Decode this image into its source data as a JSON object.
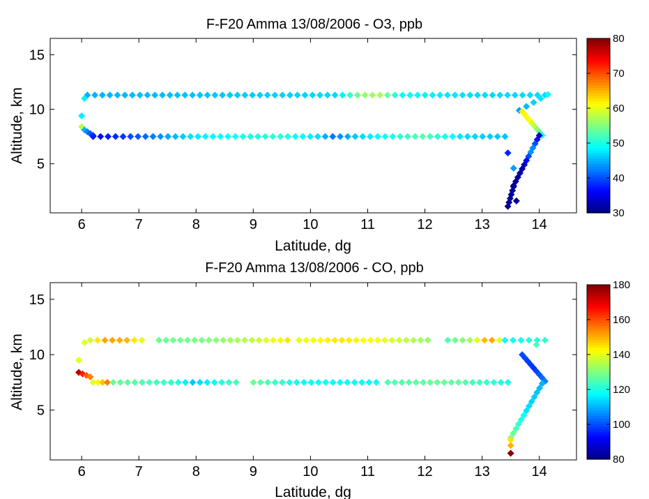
{
  "chart_data": [
    {
      "type": "scatter",
      "title": "F-F20 Amma 13/08/2006 - O3, ppb",
      "xlabel": "Latitude, dg",
      "ylabel": "Altitude, km",
      "xlim": [
        5.45,
        14.65
      ],
      "ylim": [
        0.5,
        16.5
      ],
      "xticks": [
        "6",
        "7",
        "8",
        "9",
        "10",
        "11",
        "12",
        "13",
        "14"
      ],
      "yticks": [
        "5",
        "10",
        "15"
      ],
      "colorbar": {
        "min": 30,
        "max": 80,
        "ticks": [
          "30",
          "40",
          "50",
          "60",
          "70",
          "80"
        ],
        "colormap": "jet"
      },
      "grid": false,
      "marker": "diamond",
      "segments": [
        {
          "from": [
            6.1,
            11.3
          ],
          "to": [
            14.1,
            11.3
          ],
          "n": 62,
          "colors": [
            [
              0,
              45
            ],
            [
              0.55,
              47
            ],
            [
              0.6,
              56
            ],
            [
              0.64,
              57
            ],
            [
              0.68,
              49
            ],
            [
              0.85,
              47
            ],
            [
              1,
              47
            ]
          ]
        },
        {
          "from": [
            6.2,
            7.5
          ],
          "to": [
            13.4,
            7.5
          ],
          "n": 56,
          "colors": [
            [
              0,
              36
            ],
            [
              0.1,
              40
            ],
            [
              0.25,
              48
            ],
            [
              0.45,
              51
            ],
            [
              0.55,
              47
            ],
            [
              0.58,
              42
            ],
            [
              0.65,
              47
            ],
            [
              0.8,
              53
            ],
            [
              0.9,
              47
            ],
            [
              1,
              46
            ]
          ]
        },
        {
          "from": [
            14.15,
            11.35
          ],
          "to": [
            13.65,
            9.9
          ],
          "n": 5,
          "colors": [
            [
              0,
              49
            ],
            [
              1,
              44
            ]
          ]
        },
        {
          "from": [
            13.7,
            9.8
          ],
          "to": [
            14.05,
            7.6
          ],
          "n": 9,
          "colors": [
            [
              0,
              62
            ],
            [
              0.4,
              61
            ],
            [
              0.8,
              55
            ],
            [
              1,
              50
            ]
          ]
        },
        {
          "from": [
            14.0,
            7.6
          ],
          "to": [
            13.55,
            3.0
          ],
          "n": 13,
          "colors": [
            [
              0,
              34
            ],
            [
              0.3,
              45
            ],
            [
              0.6,
              32
            ],
            [
              1,
              31
            ]
          ]
        },
        {
          "from": [
            13.55,
            2.9
          ],
          "to": [
            13.45,
            1.1
          ],
          "n": 6,
          "colors": [
            [
              0,
              31
            ],
            [
              1,
              31
            ]
          ]
        },
        {
          "from": [
            6.0,
            9.4
          ],
          "to": [
            6.0,
            9.4
          ],
          "n": 1,
          "colors": [
            [
              0,
              48
            ]
          ]
        },
        {
          "from": [
            6.0,
            8.4
          ],
          "to": [
            6.0,
            8.4
          ],
          "n": 1,
          "colors": [
            [
              0,
              58
            ]
          ]
        },
        {
          "from": [
            6.05,
            8.1
          ],
          "to": [
            6.2,
            7.6
          ],
          "n": 4,
          "colors": [
            [
              0,
              45
            ],
            [
              1,
              38
            ]
          ]
        },
        {
          "from": [
            6.05,
            11.0
          ],
          "to": [
            6.05,
            11.0
          ],
          "n": 1,
          "colors": [
            [
              0,
              48
            ]
          ]
        },
        {
          "from": [
            13.45,
            6.0
          ],
          "to": [
            13.55,
            4.6
          ],
          "n": 2,
          "colors": [
            [
              0,
              38
            ],
            [
              1,
              44
            ]
          ]
        },
        {
          "from": [
            13.6,
            1.6
          ],
          "to": [
            13.6,
            1.6
          ],
          "n": 1,
          "colors": [
            [
              0,
              31
            ]
          ]
        }
      ]
    },
    {
      "type": "scatter",
      "title": "F-F20 Amma 13/08/2006 - CO, ppb",
      "xlabel": "Latitude, dg",
      "ylabel": "Altitude, km",
      "xlim": [
        5.45,
        14.65
      ],
      "ylim": [
        0.5,
        16.5
      ],
      "xticks": [
        "6",
        "7",
        "8",
        "9",
        "10",
        "11",
        "12",
        "13",
        "14"
      ],
      "yticks": [
        "5",
        "10",
        "15"
      ],
      "colorbar": {
        "min": 80,
        "max": 180,
        "ticks": [
          "80",
          "100",
          "120",
          "140",
          "160",
          "180"
        ],
        "colormap": "jet"
      },
      "grid": false,
      "marker": "diamond",
      "segments": [
        {
          "from": [
            6.05,
            11.1
          ],
          "to": [
            6.1,
            11.2
          ],
          "n": 1,
          "colors": [
            [
              0,
              140
            ]
          ]
        },
        {
          "from": [
            6.15,
            11.3
          ],
          "to": [
            7.05,
            11.3
          ],
          "n": 8,
          "colors": [
            [
              0,
              138
            ],
            [
              0.3,
              152
            ],
            [
              0.7,
              150
            ],
            [
              1,
              140
            ]
          ]
        },
        {
          "from": [
            7.35,
            11.3
          ],
          "to": [
            9.6,
            11.3
          ],
          "n": 19,
          "colors": [
            [
              0,
              128
            ],
            [
              0.4,
              130
            ],
            [
              0.8,
              138
            ],
            [
              1,
              145
            ]
          ]
        },
        {
          "from": [
            9.8,
            11.3
          ],
          "to": [
            12.05,
            11.3
          ],
          "n": 19,
          "colors": [
            [
              0,
              140
            ],
            [
              0.3,
              145
            ],
            [
              0.6,
              142
            ],
            [
              1,
              132
            ]
          ]
        },
        {
          "from": [
            12.4,
            11.3
          ],
          "to": [
            13.3,
            11.3
          ],
          "n": 8,
          "colors": [
            [
              0,
              125
            ],
            [
              0.5,
              135
            ],
            [
              0.8,
              155
            ],
            [
              1,
              140
            ]
          ]
        },
        {
          "from": [
            13.4,
            11.3
          ],
          "to": [
            14.1,
            11.3
          ],
          "n": 6,
          "colors": [
            [
              0,
              118
            ],
            [
              1,
              122
            ]
          ]
        },
        {
          "from": [
            5.95,
            9.5
          ],
          "to": [
            5.95,
            9.5
          ],
          "n": 1,
          "colors": [
            [
              0,
              140
            ]
          ]
        },
        {
          "from": [
            5.95,
            8.4
          ],
          "to": [
            6.15,
            8.0
          ],
          "n": 4,
          "colors": [
            [
              0,
              175
            ],
            [
              0.5,
              160
            ],
            [
              1,
              155
            ]
          ]
        },
        {
          "from": [
            6.2,
            7.5
          ],
          "to": [
            6.45,
            7.5
          ],
          "n": 4,
          "colors": [
            [
              0,
              140
            ],
            [
              0.5,
              145
            ],
            [
              1,
              155
            ]
          ]
        },
        {
          "from": [
            6.55,
            7.5
          ],
          "to": [
            8.7,
            7.5
          ],
          "n": 18,
          "colors": [
            [
              0,
              128
            ],
            [
              0.5,
              122
            ],
            [
              0.65,
              112
            ],
            [
              1,
              125
            ]
          ]
        },
        {
          "from": [
            9.0,
            7.5
          ],
          "to": [
            11.15,
            7.5
          ],
          "n": 18,
          "colors": [
            [
              0,
              128
            ],
            [
              0.4,
              118
            ],
            [
              1,
              118
            ]
          ]
        },
        {
          "from": [
            11.35,
            7.5
          ],
          "to": [
            13.45,
            7.5
          ],
          "n": 18,
          "colors": [
            [
              0,
              125
            ],
            [
              0.5,
              128
            ],
            [
              1,
              120
            ]
          ]
        },
        {
          "from": [
            13.7,
            10.0
          ],
          "to": [
            14.1,
            7.6
          ],
          "n": 9,
          "colors": [
            [
              0,
              100
            ],
            [
              0.5,
              97
            ],
            [
              1,
              105
            ]
          ]
        },
        {
          "from": [
            14.05,
            7.4
          ],
          "to": [
            13.5,
            2.5
          ],
          "n": 13,
          "colors": [
            [
              0,
              110
            ],
            [
              0.5,
              115
            ],
            [
              1,
              130
            ]
          ]
        },
        {
          "from": [
            13.5,
            2.3
          ],
          "to": [
            13.5,
            1.8
          ],
          "n": 2,
          "colors": [
            [
              0,
              145
            ],
            [
              1,
              150
            ]
          ]
        },
        {
          "from": [
            13.5,
            1.1
          ],
          "to": [
            13.5,
            1.1
          ],
          "n": 1,
          "colors": [
            [
              0,
              180
            ]
          ]
        },
        {
          "from": [
            13.95,
            10.9
          ],
          "to": [
            13.95,
            10.9
          ],
          "n": 1,
          "colors": [
            [
              0,
              125
            ]
          ]
        }
      ]
    }
  ]
}
